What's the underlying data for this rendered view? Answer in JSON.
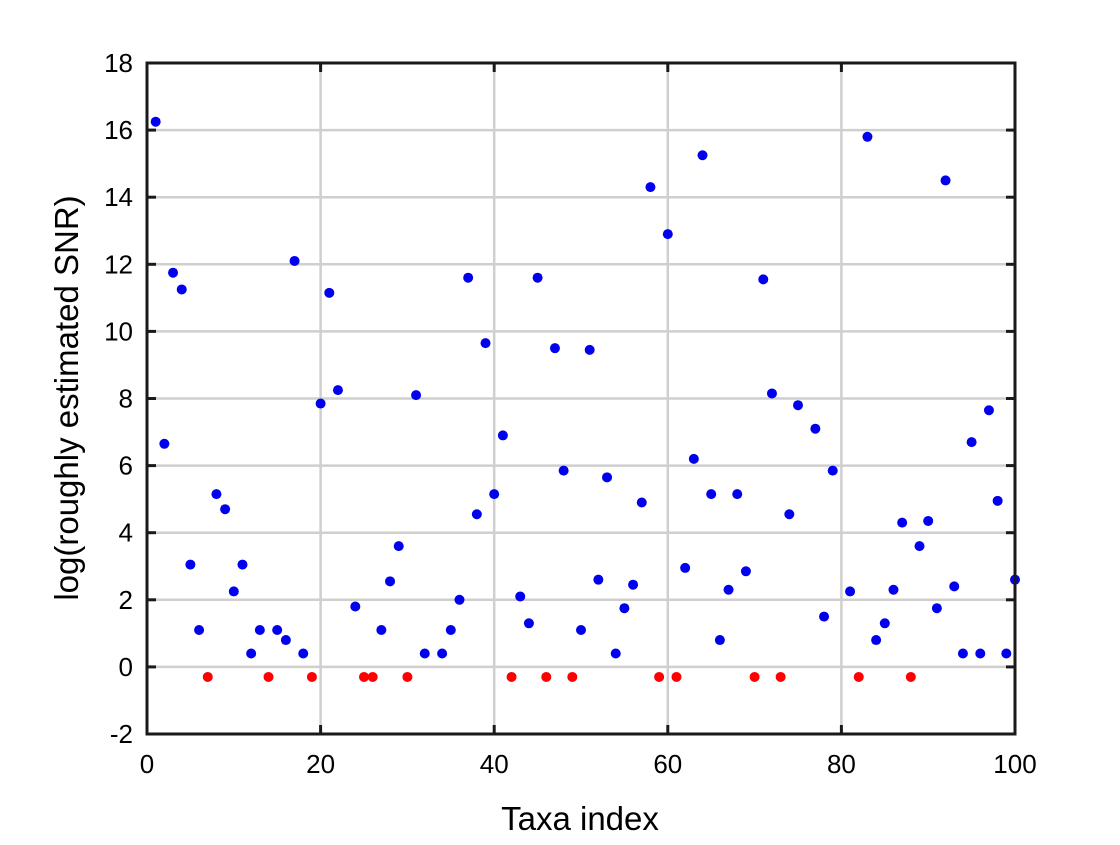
{
  "chart_data": {
    "type": "scatter",
    "title": "",
    "xlabel": "Taxa index",
    "ylabel": "log(roughly estimated SNR)",
    "xlim": [
      0,
      100
    ],
    "ylim": [
      -2,
      18
    ],
    "xticks": [
      0,
      20,
      40,
      60,
      80,
      100
    ],
    "yticks": [
      -2,
      0,
      2,
      4,
      6,
      8,
      10,
      12,
      14,
      16,
      18
    ],
    "xtick_labels": [
      "0",
      "20",
      "40",
      "60",
      "80",
      "100"
    ],
    "ytick_labels": [
      "-2",
      "0",
      "2",
      "4",
      "6",
      "8",
      "10",
      "12",
      "14",
      "16",
      "18"
    ],
    "grid": true,
    "legend": "none",
    "series": [
      {
        "color": "#0000ee",
        "x": [
          1,
          2,
          3,
          4,
          5,
          6,
          8,
          9,
          10,
          11,
          12,
          13,
          15,
          16,
          17,
          18,
          20,
          21,
          22,
          24,
          27,
          28,
          29,
          31,
          32,
          34,
          35,
          36,
          37,
          38,
          39,
          40,
          41,
          43,
          44,
          45,
          47,
          48,
          50,
          51,
          52,
          53,
          54,
          55,
          56,
          57,
          58,
          60,
          62,
          63,
          64,
          65,
          66,
          67,
          68,
          69,
          71,
          72,
          74,
          75,
          77,
          78,
          79,
          81,
          83,
          84,
          85,
          86,
          87,
          89,
          90,
          91,
          92,
          93,
          94,
          95,
          96,
          97,
          98,
          99,
          100
        ],
        "y": [
          16.25,
          6.65,
          11.75,
          11.25,
          3.05,
          1.1,
          5.15,
          4.7,
          2.25,
          3.05,
          0.4,
          1.1,
          1.1,
          0.8,
          12.1,
          0.4,
          7.85,
          11.15,
          8.25,
          1.8,
          1.1,
          2.55,
          3.6,
          8.1,
          0.4,
          0.4,
          1.1,
          2.0,
          11.6,
          4.55,
          9.65,
          5.15,
          6.9,
          2.1,
          1.3,
          11.6,
          9.5,
          5.85,
          1.1,
          9.45,
          2.6,
          5.65,
          0.4,
          1.75,
          2.45,
          4.9,
          14.3,
          12.9,
          2.95,
          6.2,
          15.25,
          5.15,
          0.8,
          2.3,
          5.15,
          2.85,
          11.55,
          8.15,
          4.55,
          7.8,
          7.1,
          1.5,
          5.85,
          2.25,
          15.8,
          0.8,
          1.3,
          2.3,
          4.3,
          3.6,
          4.35,
          1.75,
          14.5,
          2.4,
          0.4,
          6.7,
          0.4,
          7.65,
          4.95,
          0.4,
          2.6
        ]
      },
      {
        "color": "#ff0000",
        "x": [
          7,
          14,
          19,
          25,
          26,
          30,
          42,
          46,
          49,
          59,
          61,
          70,
          73,
          82,
          88
        ],
        "y": [
          -0.3,
          -0.3,
          -0.3,
          -0.3,
          -0.3,
          -0.3,
          -0.3,
          -0.3,
          -0.3,
          -0.3,
          -0.3,
          -0.3,
          -0.3,
          -0.3,
          -0.3
        ]
      }
    ]
  }
}
